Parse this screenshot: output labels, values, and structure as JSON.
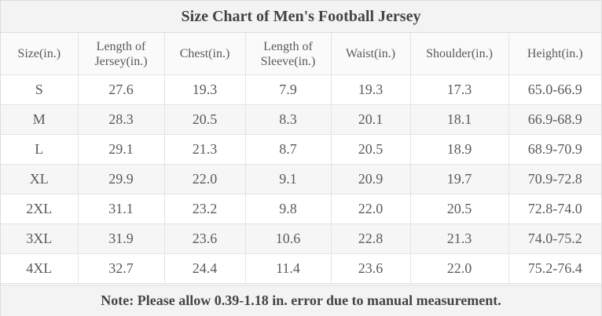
{
  "title": "Size Chart of Men's Football Jersey",
  "columns": [
    {
      "lines": [
        "Size(in.)"
      ]
    },
    {
      "lines": [
        "Length of",
        "Jersey(in.)"
      ]
    },
    {
      "lines": [
        "Chest(in.)"
      ]
    },
    {
      "lines": [
        "Length of",
        "Sleeve(in.)"
      ]
    },
    {
      "lines": [
        "Waist(in.)"
      ]
    },
    {
      "lines": [
        "Shoulder(in.)"
      ]
    },
    {
      "lines": [
        "Height(in.)"
      ]
    }
  ],
  "rows": [
    [
      "S",
      "27.6",
      "19.3",
      "7.9",
      "19.3",
      "17.3",
      "65.0-66.9"
    ],
    [
      "M",
      "28.3",
      "20.5",
      "8.3",
      "20.1",
      "18.1",
      "66.9-68.9"
    ],
    [
      "L",
      "29.1",
      "21.3",
      "8.7",
      "20.5",
      "18.9",
      "68.9-70.9"
    ],
    [
      "XL",
      "29.9",
      "22.0",
      "9.1",
      "20.9",
      "19.7",
      "70.9-72.8"
    ],
    [
      "2XL",
      "31.1",
      "23.2",
      "9.8",
      "22.0",
      "20.5",
      "72.8-74.0"
    ],
    [
      "3XL",
      "31.9",
      "23.6",
      "10.6",
      "22.8",
      "21.3",
      "74.0-75.2"
    ],
    [
      "4XL",
      "32.7",
      "24.4",
      "11.4",
      "23.6",
      "22.0",
      "75.2-76.4"
    ]
  ],
  "note": "Note: Please allow 0.39-1.18 in. error due to manual measurement."
}
